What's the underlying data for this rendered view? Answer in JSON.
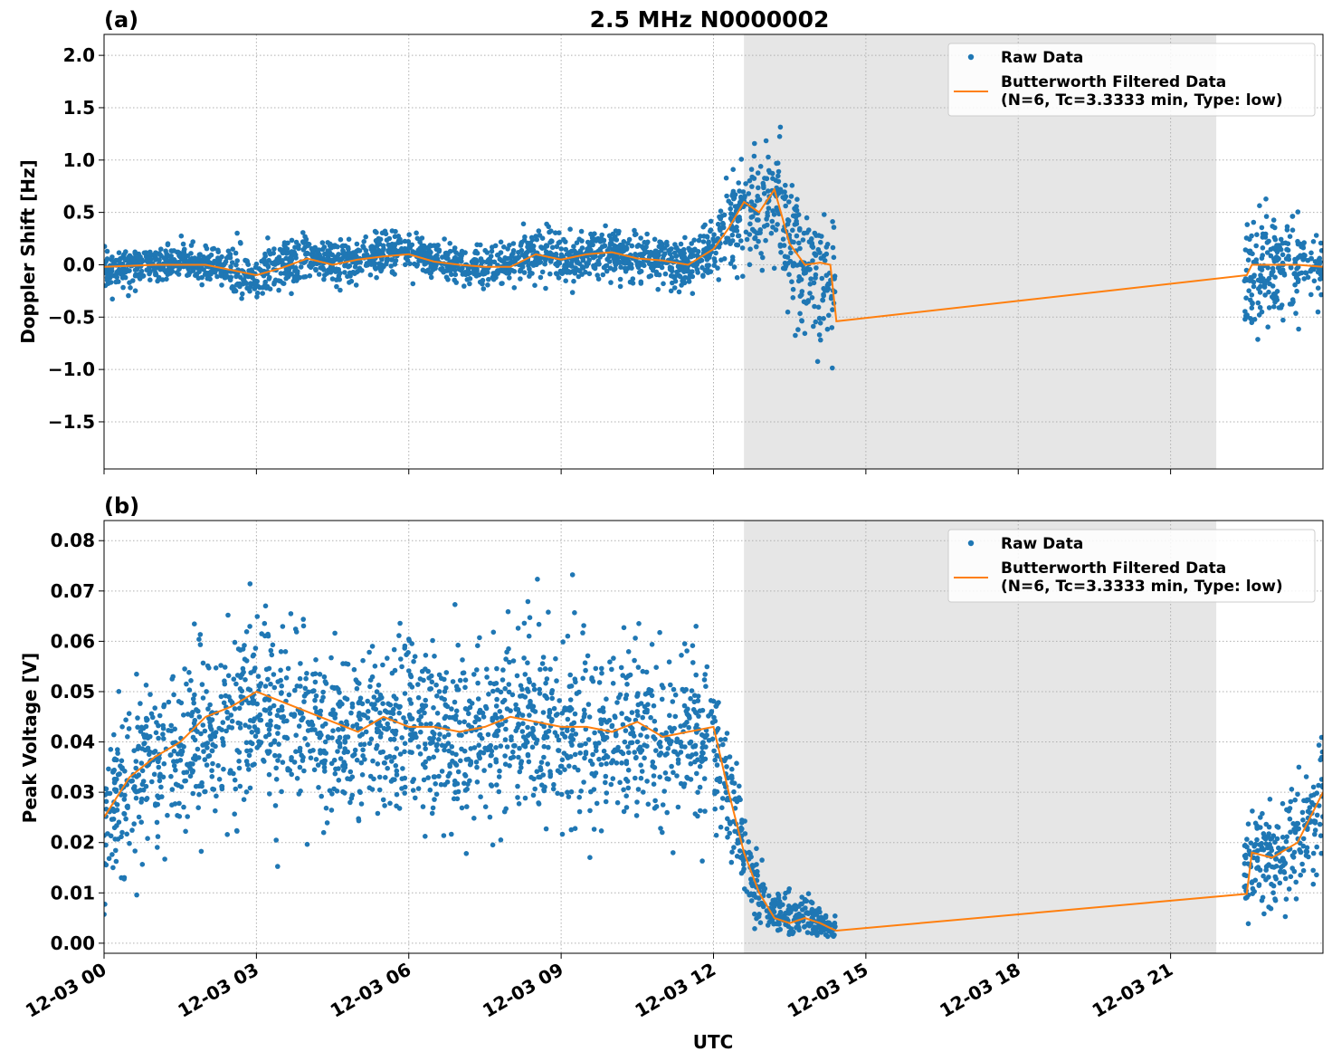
{
  "figure": {
    "title": "2.5 MHz N0000002",
    "xlabel": "UTC"
  },
  "chart_data": [
    {
      "type": "scatter",
      "panel_label": "(a)",
      "title": "2.5 MHz N0000002",
      "xlabel": "",
      "ylabel": "Doppler Shift [Hz]",
      "x_unit": "hours since 12-03 00 UTC",
      "xlim": [
        0,
        24
      ],
      "ylim": [
        -1.95,
        2.2
      ],
      "yticks": [
        2.0,
        1.5,
        1.0,
        0.5,
        0.0,
        -0.5,
        -1.0,
        -1.5
      ],
      "ytick_labels": [
        "2.0",
        "1.5",
        "1.0",
        "0.5",
        "0.0",
        "−0.5",
        "−1.0",
        "−1.5"
      ],
      "grid": true,
      "legend_position": "top-right",
      "shaded_interval": [
        12.6,
        21.9
      ],
      "series": [
        {
          "name": "Raw Data",
          "kind": "points",
          "color": "#1f77b4",
          "x": [
            0.0,
            0.5,
            1.0,
            1.5,
            2.0,
            2.5,
            3.0,
            3.5,
            4.0,
            4.5,
            5.0,
            5.5,
            6.0,
            6.5,
            7.0,
            7.5,
            8.0,
            8.5,
            9.0,
            9.5,
            10.0,
            10.5,
            11.0,
            11.5,
            12.0,
            12.3,
            12.6,
            12.9,
            13.2,
            13.5,
            13.8,
            14.1,
            14.35,
            22.5,
            22.8,
            23.1,
            23.4,
            23.7,
            24.0
          ],
          "y": [
            -0.05,
            -0.02,
            0.0,
            0.02,
            0.0,
            -0.05,
            -0.12,
            -0.02,
            0.05,
            0.0,
            0.05,
            0.1,
            0.12,
            0.05,
            0.0,
            -0.02,
            0.0,
            0.12,
            0.05,
            0.1,
            0.12,
            0.08,
            0.02,
            0.0,
            0.15,
            0.35,
            0.55,
            0.5,
            0.6,
            0.2,
            0.0,
            -0.15,
            -0.3,
            -0.05,
            0.0,
            0.02,
            -0.02,
            0.0,
            -0.02
          ],
          "spread": [
            0.15,
            0.15,
            0.15,
            0.15,
            0.18,
            0.2,
            0.25,
            0.2,
            0.22,
            0.2,
            0.18,
            0.18,
            0.18,
            0.15,
            0.15,
            0.15,
            0.18,
            0.2,
            0.2,
            0.22,
            0.2,
            0.2,
            0.2,
            0.2,
            0.25,
            0.35,
            0.45,
            0.45,
            0.55,
            0.55,
            0.6,
            0.65,
            0.6,
            0.45,
            0.5,
            0.4,
            0.35,
            0.3,
            0.3
          ]
        },
        {
          "name": "Butterworth Filtered Data\n(N=6, Tc=3.3333 min, Type: low)",
          "kind": "line",
          "color": "#ff7f0e",
          "x": [
            0.0,
            0.5,
            1.0,
            1.5,
            2.0,
            2.5,
            3.0,
            3.5,
            4.0,
            4.5,
            5.0,
            5.5,
            6.0,
            6.5,
            7.0,
            7.5,
            8.0,
            8.5,
            9.0,
            9.5,
            10.0,
            10.5,
            11.0,
            11.5,
            12.0,
            12.3,
            12.6,
            12.9,
            13.2,
            13.5,
            13.8,
            14.1,
            14.3,
            14.4,
            14.42,
            22.5,
            22.6,
            23.0,
            23.5,
            24.0
          ],
          "y": [
            -0.02,
            -0.01,
            0.0,
            0.0,
            0.0,
            -0.05,
            -0.1,
            -0.03,
            0.06,
            0.0,
            0.05,
            0.08,
            0.1,
            0.03,
            0.0,
            -0.02,
            -0.02,
            0.1,
            0.05,
            0.1,
            0.12,
            0.06,
            0.04,
            0.0,
            0.15,
            0.35,
            0.6,
            0.5,
            0.72,
            0.2,
            0.0,
            0.02,
            0.0,
            -0.45,
            -0.54,
            -0.1,
            0.0,
            0.0,
            0.0,
            -0.02
          ]
        }
      ]
    },
    {
      "type": "scatter",
      "panel_label": "(b)",
      "title": "",
      "xlabel": "UTC",
      "ylabel": "Peak Voltage [V]",
      "x_unit": "hours since 12-03 00 UTC",
      "xlim": [
        0,
        24
      ],
      "ylim": [
        -0.002,
        0.084
      ],
      "yticks": [
        0.08,
        0.07,
        0.06,
        0.05,
        0.04,
        0.03,
        0.02,
        0.01,
        0.0
      ],
      "ytick_labels": [
        "0.08",
        "0.07",
        "0.06",
        "0.05",
        "0.04",
        "0.03",
        "0.02",
        "0.01",
        "0.00"
      ],
      "xticks": [
        0,
        3,
        6,
        9,
        12,
        15,
        18,
        21
      ],
      "xtick_labels": [
        "12-03 00",
        "12-03 03",
        "12-03 06",
        "12-03 09",
        "12-03 12",
        "12-03 15",
        "12-03 18",
        "12-03 21"
      ],
      "grid": true,
      "legend_position": "top-right",
      "shaded_interval": [
        12.6,
        21.9
      ],
      "series": [
        {
          "name": "Raw Data",
          "kind": "points",
          "color": "#1f77b4",
          "x": [
            0.0,
            0.5,
            1.0,
            1.5,
            2.0,
            2.5,
            3.0,
            3.5,
            4.0,
            4.5,
            5.0,
            5.5,
            6.0,
            6.5,
            7.0,
            7.5,
            8.0,
            8.5,
            9.0,
            9.5,
            10.0,
            10.5,
            11.0,
            11.5,
            12.0,
            12.3,
            12.6,
            12.9,
            13.2,
            13.5,
            13.8,
            14.1,
            14.35,
            22.5,
            22.8,
            23.1,
            23.4,
            23.7,
            24.0
          ],
          "y": [
            0.025,
            0.032,
            0.035,
            0.038,
            0.042,
            0.044,
            0.047,
            0.045,
            0.043,
            0.042,
            0.041,
            0.042,
            0.042,
            0.041,
            0.041,
            0.042,
            0.043,
            0.043,
            0.042,
            0.042,
            0.041,
            0.042,
            0.04,
            0.041,
            0.04,
            0.03,
            0.018,
            0.01,
            0.006,
            0.005,
            0.006,
            0.004,
            0.003,
            0.015,
            0.018,
            0.017,
            0.02,
            0.022,
            0.03
          ],
          "spread": [
            0.014,
            0.014,
            0.014,
            0.015,
            0.016,
            0.016,
            0.017,
            0.016,
            0.016,
            0.015,
            0.015,
            0.015,
            0.015,
            0.015,
            0.015,
            0.015,
            0.015,
            0.015,
            0.015,
            0.015,
            0.015,
            0.015,
            0.015,
            0.015,
            0.014,
            0.01,
            0.007,
            0.005,
            0.004,
            0.004,
            0.004,
            0.002,
            0.002,
            0.008,
            0.009,
            0.009,
            0.01,
            0.011,
            0.012
          ]
        },
        {
          "name": "Butterworth Filtered Data\n(N=6, Tc=3.3333 min, Type: low)",
          "kind": "line",
          "color": "#ff7f0e",
          "x": [
            0.0,
            0.5,
            1.0,
            1.5,
            2.0,
            2.5,
            3.0,
            3.5,
            4.0,
            4.5,
            5.0,
            5.5,
            6.0,
            6.5,
            7.0,
            7.5,
            8.0,
            8.5,
            9.0,
            9.5,
            10.0,
            10.5,
            11.0,
            11.5,
            12.0,
            12.3,
            12.6,
            12.9,
            13.2,
            13.5,
            13.8,
            14.1,
            14.3,
            14.42,
            22.5,
            22.6,
            23.0,
            23.5,
            24.0
          ],
          "y": [
            0.025,
            0.033,
            0.037,
            0.04,
            0.045,
            0.047,
            0.05,
            0.048,
            0.046,
            0.044,
            0.042,
            0.045,
            0.043,
            0.043,
            0.042,
            0.043,
            0.045,
            0.044,
            0.043,
            0.043,
            0.042,
            0.044,
            0.041,
            0.042,
            0.043,
            0.03,
            0.018,
            0.01,
            0.005,
            0.004,
            0.005,
            0.004,
            0.003,
            0.0025,
            0.0098,
            0.018,
            0.017,
            0.02,
            0.03
          ]
        }
      ]
    }
  ]
}
